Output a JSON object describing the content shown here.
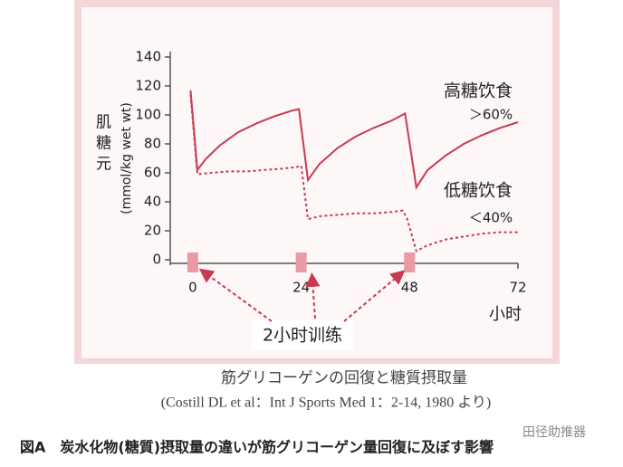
{
  "chart_data": {
    "type": "line",
    "y_label": "(mmol/kg wet wt)",
    "y_title": "肌糖元",
    "x_unit": "小时",
    "xlim": [
      -5,
      72
    ],
    "xticks": [
      0,
      24,
      48,
      72
    ],
    "ylim": [
      0,
      140
    ],
    "yticks": [
      0,
      20,
      40,
      60,
      80,
      100,
      120,
      140
    ],
    "series": [
      {
        "name": "高糖饮食",
        "note": "＞60%",
        "color": "#c83a52",
        "dash": false,
        "x": [
          -0.5,
          1,
          3,
          6,
          10,
          14,
          18,
          22,
          23.5,
          25.5,
          28,
          32,
          36,
          40,
          44,
          47,
          49.5,
          52,
          56,
          60,
          64,
          68,
          72
        ],
        "values": [
          117,
          62,
          70,
          79,
          88,
          94,
          99,
          103,
          104,
          55,
          66,
          77,
          85,
          91,
          96,
          101,
          50,
          62,
          72,
          80,
          86,
          91,
          95
        ]
      },
      {
        "name": "低糖饮食",
        "note": "＜40%",
        "color": "#c83a52",
        "dash": true,
        "x": [
          -0.5,
          1,
          4,
          8,
          12,
          16,
          20,
          23,
          24,
          25.5,
          28,
          32,
          36,
          40,
          44,
          46.5,
          47.5,
          49.5,
          52,
          56,
          60,
          64,
          68,
          72
        ],
        "values": [
          114,
          59,
          60,
          61,
          61,
          62,
          63,
          64,
          65,
          28,
          30,
          31,
          32,
          32,
          33,
          34,
          28,
          6,
          10,
          14,
          16,
          18,
          19,
          19
        ]
      }
    ],
    "training_label": "2小时训练",
    "training_x": [
      0,
      24,
      48
    ],
    "caption": "筋グリコーゲンの回復と糖質摂取量",
    "citation": "(Costill DL et al：Int J Sports Med 1：2-14, 1980 より)",
    "figure_title": "図A　炭水化物(糖質)摂取量の違いが筋グリコーゲン量回復に及ぼす影響",
    "watermark": "田径助推器"
  }
}
